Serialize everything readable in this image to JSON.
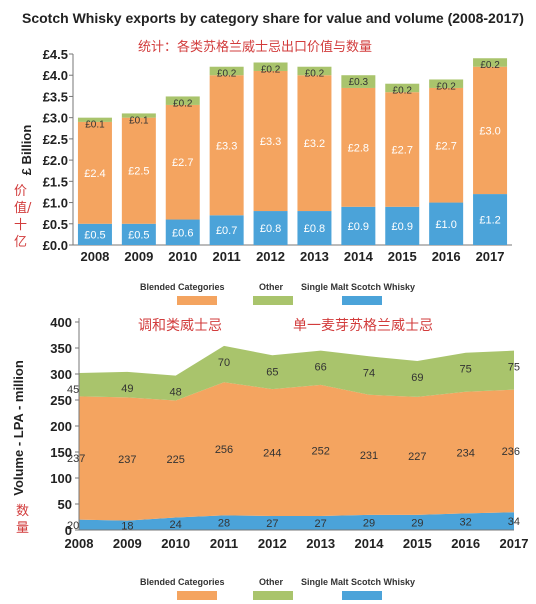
{
  "header": {
    "title": "Scotch Whisky exports by category share for value and volume (2008-2017)",
    "note_top": "统计：各类苏格兰威士忌出口价值与数量",
    "note_value_axis": "价值/十亿",
    "note_volume_axis": "数量",
    "note_blended": "调和类威士忌",
    "note_single_malt": "单一麦芽苏格兰威士忌"
  },
  "legend": {
    "blended": "Blended Categories",
    "other": "Other",
    "single_malt": "Single Malt Scotch Whisky"
  },
  "colors": {
    "blended": "#f4a460",
    "other": "#a9c46c",
    "single_malt": "#4ba3d9"
  },
  "chart_data": [
    {
      "type": "bar",
      "stacked": true,
      "categories": [
        "2008",
        "2009",
        "2010",
        "2011",
        "2012",
        "2013",
        "2014",
        "2015",
        "2016",
        "2017"
      ],
      "series": [
        {
          "name": "Single Malt Scotch Whisky",
          "values": [
            0.5,
            0.5,
            0.6,
            0.7,
            0.8,
            0.8,
            0.9,
            0.9,
            1.0,
            1.2
          ],
          "labels": [
            "£0.5",
            "£0.5",
            "£0.6",
            "£0.7",
            "£0.8",
            "£0.8",
            "£0.9",
            "£0.9",
            "£1.0",
            "£1.2"
          ]
        },
        {
          "name": "Blended Categories",
          "values": [
            2.4,
            2.5,
            2.7,
            3.3,
            3.3,
            3.2,
            2.8,
            2.7,
            2.7,
            3.0
          ],
          "labels": [
            "£2.4",
            "£2.5",
            "£2.7",
            "£3.3",
            "£3.3",
            "£3.2",
            "£2.8",
            "£2.7",
            "£2.7",
            "£3.0"
          ]
        },
        {
          "name": "Other",
          "values": [
            0.1,
            0.1,
            0.2,
            0.2,
            0.2,
            0.2,
            0.3,
            0.2,
            0.2,
            0.2
          ],
          "labels": [
            "£0.1",
            "£0.1",
            "£0.2",
            "£0.2",
            "£0.2",
            "£0.2",
            "£0.3",
            "£0.2",
            "£0.2",
            "£0.2"
          ]
        }
      ],
      "ylabel": "£ Billion",
      "ylim": [
        0,
        4.5
      ],
      "yticks": [
        "£0.0",
        "£0.5",
        "£1.0",
        "£1.5",
        "£2.0",
        "£2.5",
        "£3.0",
        "£3.5",
        "£4.0",
        "£4.5"
      ],
      "grid": false,
      "legend_position": "bottom"
    },
    {
      "type": "area",
      "stacked": true,
      "x": [
        "2008",
        "2009",
        "2010",
        "2011",
        "2012",
        "2013",
        "2014",
        "2015",
        "2016",
        "2017"
      ],
      "series": [
        {
          "name": "Single Malt Scotch Whisky",
          "values": [
            20,
            18,
            24,
            28,
            27,
            27,
            29,
            29,
            32,
            34
          ]
        },
        {
          "name": "Blended Categories",
          "values": [
            237,
            237,
            225,
            256,
            244,
            252,
            231,
            227,
            234,
            236
          ]
        },
        {
          "name": "Other",
          "values": [
            45,
            49,
            48,
            70,
            65,
            66,
            74,
            69,
            75,
            75
          ]
        }
      ],
      "ylabel": "Volume - LPA - million",
      "ylim": [
        0,
        400
      ],
      "yticks": [
        "0",
        "50",
        "100",
        "150",
        "200",
        "250",
        "300",
        "350",
        "400"
      ],
      "grid": false,
      "legend_position": "bottom"
    }
  ]
}
